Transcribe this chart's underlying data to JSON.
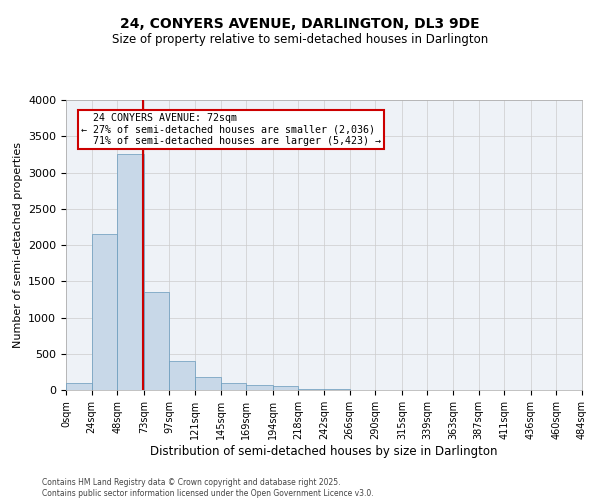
{
  "title_line1": "24, CONYERS AVENUE, DARLINGTON, DL3 9DE",
  "title_line2": "Size of property relative to semi-detached houses in Darlington",
  "xlabel": "Distribution of semi-detached houses by size in Darlington",
  "ylabel": "Number of semi-detached properties",
  "bar_color": "#c8d8e8",
  "bar_edge_color": "#6699bb",
  "grid_color": "#cccccc",
  "background_color": "#eef2f7",
  "annotation_box_color": "#cc0000",
  "vline_color": "#cc0000",
  "property_size": 72,
  "property_label": "24 CONYERS AVENUE: 72sqm",
  "smaller_pct": "27%",
  "smaller_count": "2,036",
  "larger_pct": "71%",
  "larger_count": "5,423",
  "bin_edges": [
    0,
    24,
    48,
    73,
    97,
    121,
    145,
    169,
    194,
    218,
    242,
    266,
    290,
    315,
    339,
    363,
    387,
    411,
    436,
    460,
    484
  ],
  "bin_labels": [
    "0sqm",
    "24sqm",
    "48sqm",
    "73sqm",
    "97sqm",
    "121sqm",
    "145sqm",
    "169sqm",
    "194sqm",
    "218sqm",
    "242sqm",
    "266sqm",
    "290sqm",
    "315sqm",
    "339sqm",
    "363sqm",
    "387sqm",
    "411sqm",
    "436sqm",
    "460sqm",
    "484sqm"
  ],
  "counts": [
    100,
    2150,
    3250,
    1350,
    400,
    175,
    100,
    65,
    55,
    20,
    10,
    5,
    5,
    2,
    2,
    1,
    1,
    0,
    0,
    0
  ],
  "ylim": [
    0,
    4000
  ],
  "yticks": [
    0,
    500,
    1000,
    1500,
    2000,
    2500,
    3000,
    3500,
    4000
  ],
  "footer_line1": "Contains HM Land Registry data © Crown copyright and database right 2025.",
  "footer_line2": "Contains public sector information licensed under the Open Government Licence v3.0."
}
